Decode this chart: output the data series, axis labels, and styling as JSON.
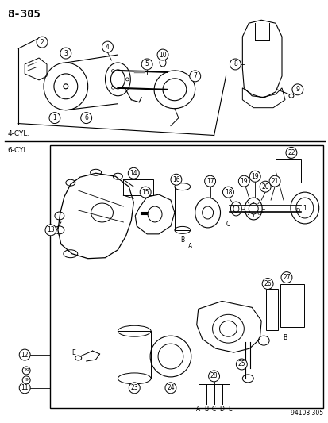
{
  "title": "8-305",
  "bg_color": "#ffffff",
  "page_code": "94108 305",
  "four_cyl_label": "4-CYL.",
  "six_cyl_label": "6-CYL",
  "fig_width": 4.14,
  "fig_height": 5.33,
  "dpi": 100
}
